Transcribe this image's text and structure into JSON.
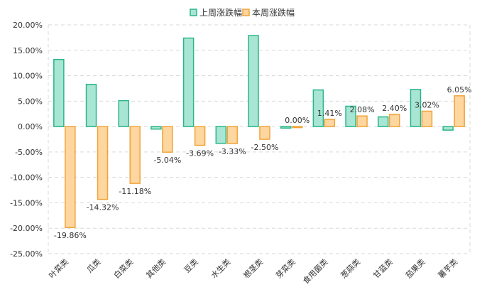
{
  "chart_data": {
    "type": "bar",
    "title": "",
    "xlabel": "",
    "ylabel": "",
    "ylim": [
      -25,
      20
    ],
    "yticks": [
      20,
      15,
      10,
      5,
      0,
      -5,
      -10,
      -15,
      -20,
      -25
    ],
    "ytick_labels": [
      "20.00%",
      "15.00%",
      "10.00%",
      "5.00%",
      "0.00%",
      "-5.00%",
      "-10.00%",
      "-15.00%",
      "-20.00%",
      "-25.00%"
    ],
    "grid": "dashed horizontal lines at each tick; dashed outer border",
    "legend_position": "top-center",
    "categories": [
      "叶菜类",
      "瓜类",
      "白菜类",
      "其他类",
      "豆类",
      "水生类",
      "根茎类",
      "芽菜类",
      "食用菌类",
      "葱蒜类",
      "甘蓝类",
      "茄果类",
      "薯芋类"
    ],
    "series": [
      {
        "name": "上周涨跌幅",
        "fill": "#a8e6d3",
        "stroke": "#2bb58a",
        "values": [
          13.2,
          8.3,
          5.1,
          -0.5,
          17.4,
          -3.3,
          17.9,
          -0.3,
          7.2,
          4.0,
          1.9,
          7.3,
          -0.7
        ],
        "labels": []
      },
      {
        "name": "本周涨跌幅",
        "fill": "#fdd6a0",
        "stroke": "#f0a43a",
        "values": [
          -19.86,
          -14.32,
          -11.18,
          -5.04,
          -3.69,
          -3.33,
          -2.5,
          0.0,
          1.41,
          2.08,
          2.4,
          3.02,
          6.05
        ],
        "labels": [
          "-19.86%",
          "-14.32%",
          "-11.18%",
          "-5.04%",
          "-3.69%",
          "-3.33%",
          "-2.50%",
          "0.00%",
          "1.41%",
          "2.08%",
          "2.40%",
          "3.02%",
          "6.05%"
        ]
      }
    ]
  }
}
